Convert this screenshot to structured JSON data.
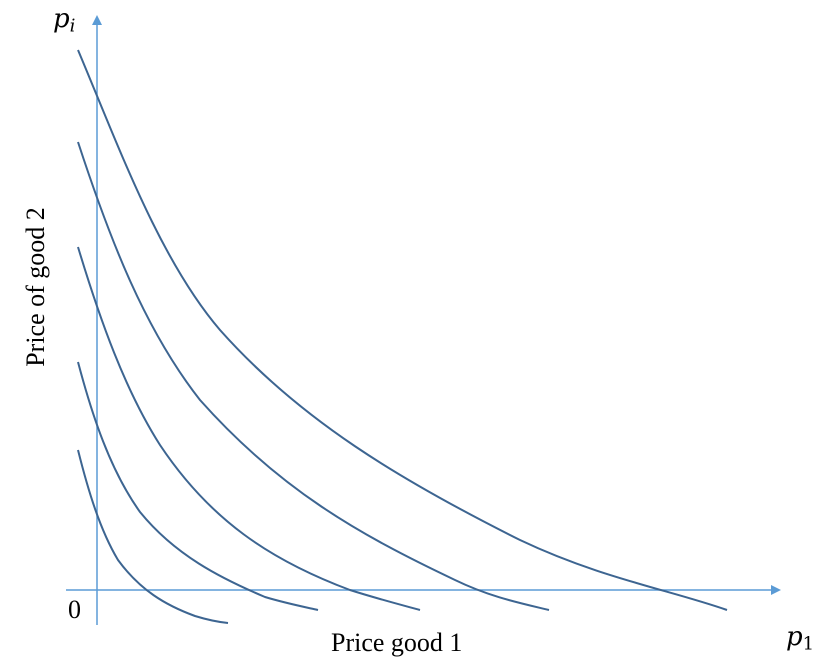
{
  "diagram": {
    "y_axis_symbol": {
      "base": "p",
      "subscript": "i"
    },
    "x_axis_symbol": {
      "base": "p",
      "subscript": "1"
    },
    "origin_label": "0",
    "x_axis_title": "Price good 1",
    "y_axis_title": "Price of good 2",
    "colors": {
      "axis": "#5b9bd5",
      "curve": "#3d6591",
      "text": "#000000"
    },
    "curve_count": 5
  }
}
